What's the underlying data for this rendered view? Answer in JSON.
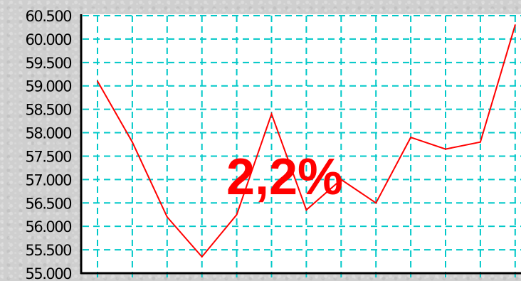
{
  "chart_data": {
    "type": "line",
    "title": "",
    "xlabel": "",
    "ylabel": "",
    "x": [
      1,
      2,
      3,
      4,
      5,
      6,
      7,
      8,
      9,
      10,
      11,
      12,
      13
    ],
    "series": [
      {
        "values": [
          59.1,
          57.8,
          56.2,
          55.35,
          56.25,
          58.4,
          56.35,
          57.0,
          56.5,
          57.9,
          57.65,
          57.8,
          60.3
        ],
        "color": "#ff0000"
      }
    ],
    "ylim": [
      55.0,
      60.5
    ],
    "ytick_values": [
      60.5,
      60.0,
      59.5,
      59.0,
      58.5,
      58.0,
      57.5,
      57.0,
      56.5,
      56.0,
      55.5,
      55.0
    ],
    "ytick_labels": [
      "60.500",
      "60.000",
      "59.500",
      "59.000",
      "58.500",
      "58.000",
      "57.500",
      "57.000",
      "56.500",
      "56.000",
      "55.500",
      "55.000"
    ],
    "grid": true,
    "grid_color": "#00c8c8",
    "plot_background": "#ffffff",
    "annotation": {
      "text": "2,2%",
      "color": "#ff0000"
    }
  }
}
